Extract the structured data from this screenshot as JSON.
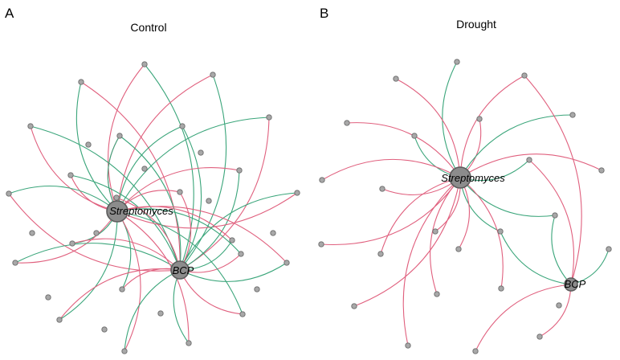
{
  "colors": {
    "positive_edge": "#3aa57a",
    "negative_edge": "#e0607e",
    "node_fill": "#a8a8a8",
    "hub_fill": "#8c8c8c"
  },
  "panels": [
    {
      "id": "control",
      "letter": "A",
      "title": "Control",
      "hubs": [
        "Streptomyces",
        "BCP"
      ],
      "peripheral_node_count": 34,
      "edges": [
        {
          "from": "Streptomyces",
          "sign": "pos"
        },
        {
          "from": "Streptomyces",
          "sign": "neg"
        },
        {
          "from": "BCP",
          "sign": "pos"
        },
        {
          "from": "BCP",
          "sign": "neg"
        }
      ]
    },
    {
      "id": "drought",
      "letter": "B",
      "title": "Drought",
      "hubs": [
        "Streptomyces",
        "BCP"
      ],
      "peripheral_node_count": 25,
      "edges": [
        {
          "from": "Streptomyces",
          "sign": "pos"
        },
        {
          "from": "Streptomyces",
          "sign": "neg"
        },
        {
          "from": "BCP",
          "sign": "pos"
        },
        {
          "from": "BCP",
          "sign": "neg"
        }
      ]
    }
  ]
}
